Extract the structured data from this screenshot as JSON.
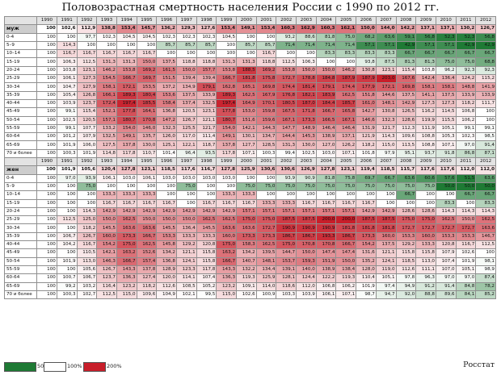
{
  "title": "Половозрастная смертность населения России с 1990 по 2012 гг.",
  "years": [
    "1990",
    "1991",
    "1992",
    "1993",
    "1994",
    "1995",
    "1996",
    "1997",
    "1998",
    "1999",
    "2000",
    "2001",
    "2002",
    "2003",
    "2004",
    "2005",
    "2006",
    "2007",
    "2008",
    "2009",
    "2010",
    "2011",
    "2012"
  ],
  "legend": {
    "low": "50%",
    "mid": "100%",
    "high": "200%"
  },
  "source": "Росстат",
  "colors": {
    "low": "#1e7a34",
    "mid": "#ffffff",
    "high": "#c81e2a",
    "header": "#e3e3e3",
    "sex_label": "#cdcdcd"
  },
  "chart_data": {
    "type": "heatmap",
    "title": "Половозрастная смертность населения России с 1990 по 2012 гг.",
    "x": [
      "1990",
      "1991",
      "1992",
      "1993",
      "1994",
      "1995",
      "1996",
      "1997",
      "1998",
      "1999",
      "2000",
      "2001",
      "2002",
      "2003",
      "2004",
      "2005",
      "2006",
      "2007",
      "2008",
      "2009",
      "2010",
      "2011",
      "2012"
    ],
    "color_scale": {
      "low": 50,
      "mid": 100,
      "high": 200
    },
    "groups": [
      {
        "name": "муж",
        "rows": [
          {
            "label": "муж",
            "total": true,
            "values": [
              100,
              102.6,
              112.9,
              138.8,
              153.4,
              145.7,
              136.2,
              129.3,
              127.6,
              153.4,
              149.1,
              153.4,
              160.3,
              162.9,
              160.3,
              162.1,
              150.0,
              144.0,
              142.2,
              137.1,
              137.1,
              130.2,
              126.7
            ]
          },
          {
            "label": "0-4",
            "values": [
              100,
              100.0,
              97.7,
              102.3,
              104.5,
              104.5,
              102.3,
              102.3,
              102.3,
              104.5,
              100.0,
              100.0,
              93.2,
              88.6,
              81.8,
              75.0,
              68.2,
              63.6,
              59.1,
              56.8,
              52.3,
              52.3,
              56.8
            ]
          },
          {
            "label": "5–9",
            "values": [
              100,
              114.3,
              100.0,
              100.0,
              100.0,
              100.0,
              85.7,
              85.7,
              85.7,
              100.0,
              85.7,
              85.7,
              71.4,
              71.4,
              71.4,
              71.4,
              57.1,
              57.1,
              42.9,
              57.1,
              57.1,
              42.9,
              42.9
            ]
          },
          {
            "label": "10–14",
            "values": [
              100,
              116.7,
              116.7,
              116.7,
              116.7,
              116.7,
              100.0,
              100.0,
              100.0,
              100.0,
              100.0,
              116.7,
              100.0,
              100.0,
              83.3,
              83.3,
              83.3,
              83.3,
              66.7,
              66.7,
              66.7,
              66.7,
              66.7
            ]
          },
          {
            "label": "15-19",
            "values": [
              100,
              106.3,
              112.5,
              131.3,
              131.3,
              150.0,
              137.5,
              118.8,
              118.8,
              131.3,
              131.3,
              118.8,
              112.5,
              106.3,
              100.0,
              100.0,
              93.8,
              87.5,
              81.3,
              81.3,
              75.0,
              75.0,
              68.8
            ]
          },
          {
            "label": "20-24",
            "values": [
              100,
              103.8,
              123.1,
              146.2,
              153.8,
              169.2,
              161.5,
              150.0,
              157.7,
              153.8,
              188.5,
              169.2,
              153.8,
              150.0,
              150.0,
              146.2,
              130.8,
              123.1,
              115.4,
              103.8,
              96.2,
              92.3,
              92.3
            ]
          },
          {
            "label": "25-29",
            "values": [
              100,
              106.1,
              127.3,
              154.5,
              166.7,
              169.7,
              151.5,
              139.4,
              139.4,
              166.7,
              181.8,
              175.8,
              172.7,
              178.8,
              184.8,
              187.9,
              187.9,
              203.0,
              167.6,
              142.4,
              136.4,
              124.2,
              115.2
            ]
          },
          {
            "label": "30-34",
            "values": [
              100,
              104.7,
              127.9,
              158.1,
              172.1,
              153.5,
              137.2,
              134.9,
              179.1,
              162.8,
              165.1,
              169.8,
              174.4,
              181.4,
              179.1,
              174.4,
              177.9,
              172.1,
              169.8,
              158.1,
              158.1,
              148.8,
              141.9
            ]
          },
          {
            "label": "35-39",
            "values": [
              100,
              105.4,
              126.8,
              166.1,
              189.3,
              180.4,
              153.6,
              137.5,
              133.9,
              189.3,
              162.5,
              167.9,
              176.8,
              182.1,
              183.9,
              162.5,
              151.8,
              144.6,
              137.5,
              141.1,
              137.5,
              133.9,
              133.9
            ]
          },
          {
            "label": "40-44",
            "values": [
              100,
              103.9,
              123.7,
              172.4,
              197.4,
              185.5,
              158.4,
              137.4,
              132.5,
              197.4,
              164.9,
              170.1,
              180.5,
              187.0,
              184.4,
              185.7,
              161.0,
              148.1,
              142.9,
              127.3,
              127.3,
              118.2,
              111.7
            ]
          },
          {
            "label": "45-49",
            "values": [
              100,
              99.1,
              115.4,
              152.1,
              177.8,
              164.1,
              136.8,
              120.5,
              123.1,
              177.8,
              153.0,
              159.8,
              167.5,
              171.8,
              166.7,
              165.8,
              142.7,
              130.8,
              126.5,
              116.2,
              114.5,
              106.8,
              100.0
            ]
          },
          {
            "label": "50-54",
            "values": [
              100,
              102.5,
              120.5,
              157.1,
              180.7,
              170.8,
              147.2,
              126.7,
              121.1,
              180.7,
              151.6,
              159.6,
              167.1,
              173.3,
              166.5,
              167.1,
              146.6,
              132.3,
              128.6,
              119.9,
              115.5,
              106.2,
              100.0
            ]
          },
          {
            "label": "55-59",
            "values": [
              100,
              99.1,
              107.7,
              133.2,
              154.0,
              146.0,
              132.3,
              125.5,
              121.7,
              154.0,
              142.1,
              144.3,
              147.7,
              148.9,
              146.4,
              146.4,
              131.9,
              121.7,
              112.3,
              111.9,
              105.1,
              99.1,
              99.1
            ]
          },
          {
            "label": "60-64",
            "values": [
              100,
              101.2,
              107.9,
              132.5,
              149.1,
              135.7,
              126.0,
              117.0,
              111.4,
              149.1,
              130.1,
              134.7,
              144.4,
              145.3,
              138.9,
              137.1,
              121.9,
              114.3,
              109.6,
              108.8,
              105.3,
              102.3,
              98.5
            ]
          },
          {
            "label": "65-69",
            "values": [
              100,
              101.9,
              106.0,
              127.5,
              137.8,
              130.0,
              125.1,
              122.1,
              118.7,
              137.8,
              127.7,
              128.5,
              131.3,
              130.0,
              127.0,
              126.2,
              118.2,
              115.0,
              113.5,
              108.8,
              107.1,
              97.0,
              91.4
            ]
          },
          {
            "label": "70 и более",
            "values": [
              100,
              100.3,
              101.9,
              114.8,
              117.8,
              110.7,
              101.4,
              96.4,
              93.5,
              117.8,
              107.1,
              100.3,
              99.4,
              102.5,
              103.0,
              107.1,
              101.8,
              97.9,
              95.1,
              93.7,
              91.8,
              86.8,
              87.1
            ]
          }
        ]
      },
      {
        "name": "жен",
        "rows": [
          {
            "label": "жен",
            "total": true,
            "values": [
              100,
              101.9,
              105.6,
              120.4,
              127.8,
              123.1,
              118.5,
              117.6,
              116.7,
              127.8,
              125.9,
              130.6,
              130.6,
              126.9,
              127.8,
              123.1,
              119.4,
              118.5,
              115.7,
              117.6,
              117.6,
              112.0,
              112.0
            ]
          },
          {
            "label": "0-4",
            "values": [
              100,
              97.0,
              93.9,
              106.1,
              103.0,
              106.1,
              103.0,
              103.0,
              103.0,
              103.0,
              100.0,
              100.0,
              93.9,
              90.9,
              81.8,
              75.8,
              69.7,
              66.7,
              63.6,
              60.6,
              57.6,
              51.5,
              63.6
            ]
          },
          {
            "label": "5–9",
            "values": [
              100,
              100.0,
              75.0,
              100.0,
              100.0,
              100.0,
              100.0,
              75.0,
              100.0,
              100.0,
              75.0,
              75.0,
              75.0,
              75.0,
              75.0,
              75.0,
              75.0,
              75.0,
              75.0,
              75.0,
              50.0,
              50.0,
              50.0
            ]
          },
          {
            "label": "10–14",
            "values": [
              100,
              100.0,
              100.0,
              133.3,
              133.3,
              133.3,
              100.0,
              100.0,
              100.0,
              133.3,
              133.3,
              100.0,
              100.0,
              100.0,
              100.0,
              100.0,
              100.0,
              100.0,
              66.7,
              100.0,
              100.0,
              66.7,
              66.7
            ]
          },
          {
            "label": "15-19",
            "values": [
              100,
              100.0,
              100.0,
              116.7,
              116.7,
              116.7,
              116.7,
              100.0,
              116.7,
              116.7,
              116.7,
              133.3,
              133.3,
              116.7,
              116.7,
              116.7,
              116.7,
              100.0,
              100.0,
              100.0,
              83.3,
              100.0,
              83.3
            ]
          },
          {
            "label": "20-24",
            "values": [
              100,
              100.0,
              114.3,
              142.9,
              142.9,
              142.9,
              142.9,
              142.9,
              142.9,
              142.9,
              157.1,
              157.1,
              157.1,
              157.1,
              157.1,
              157.1,
              142.9,
              142.9,
              128.6,
              128.6,
              114.3,
              114.3,
              114.3
            ]
          },
          {
            "label": "25-29",
            "values": [
              100,
              112.5,
              125.0,
              150.0,
              162.5,
              150.0,
              150.0,
              150.0,
              162.5,
              162.5,
              175.0,
              175.0,
              187.5,
              187.5,
              200.0,
              200.0,
              187.5,
              187.5,
              175.0,
              175.0,
              162.5,
              150.0,
              162.5
            ]
          },
          {
            "label": "30-34",
            "values": [
              100,
              100.0,
              118.2,
              145.5,
              163.6,
              163.6,
              145.5,
              136.4,
              145.5,
              163.6,
              163.6,
              172.7,
              190.9,
              190.9,
              190.9,
              181.8,
              181.8,
              181.8,
              172.7,
              172.7,
              172.7,
              172.7,
              163.6
            ]
          },
          {
            "label": "35-39",
            "values": [
              100,
              106.7,
              126.7,
              160.0,
              173.3,
              166.7,
              153.3,
              133.3,
              133.3,
              160.0,
              173.3,
              173.3,
              186.7,
              186.7,
              193.3,
              186.7,
              173.3,
              160.0,
              153.3,
              160.0,
              153.3,
              153.3,
              146.7
            ]
          },
          {
            "label": "40-44",
            "values": [
              100,
              104.2,
              116.7,
              154.2,
              175.0,
              162.5,
              145.8,
              129.2,
              120.8,
              175.0,
              158.3,
              162.5,
              175.0,
              170.8,
              170.8,
              166.7,
              154.2,
              137.5,
              129.2,
              133.3,
              120.8,
              116.7,
              112.5
            ]
          },
          {
            "label": "45-49",
            "values": [
              100,
              100.0,
              110.5,
              142.1,
              163.2,
              152.6,
              134.2,
              121.1,
              115.8,
              163.2,
              134.2,
              139.5,
              144.7,
              150.0,
              147.4,
              147.4,
              131.6,
              121.1,
              115.8,
              115.8,
              107.9,
              102.6,
              100.0
            ]
          },
          {
            "label": "50-54",
            "values": [
              100,
              101.9,
              113.0,
              146.3,
              166.7,
              157.4,
              136.8,
              124.1,
              115.8,
              166.7,
              140.7,
              148.1,
              153.7,
              159.3,
              151.9,
              150.0,
              135.2,
              124.1,
              118.5,
              113.0,
              107.4,
              101.9,
              98.1
            ]
          },
          {
            "label": "55-59",
            "values": [
              100,
              100.0,
              105.6,
              126.7,
              143.3,
              137.8,
              128.9,
              123.3,
              117.8,
              143.3,
              132.2,
              134.4,
              139.1,
              140.0,
              138.9,
              138.4,
              128.0,
              119.0,
              112.6,
              111.1,
              107.0,
              105.1,
              98.9
            ]
          },
          {
            "label": "60-64",
            "values": [
              100,
              100.7,
              106.7,
              123.7,
              136.3,
              127.4,
              120.0,
              114.1,
              107.4,
              136.3,
              119.3,
              125.9,
              128.1,
              124.4,
              122.2,
              119.3,
              110.4,
              105.1,
              97.8,
              96.3,
              97.0,
              97.0,
              87.4
            ]
          },
          {
            "label": "65-69",
            "values": [
              100,
              99.2,
              103.2,
              116.4,
              123.2,
              118.2,
              112.6,
              108.5,
              105.2,
              123.2,
              109.1,
              114.0,
              118.6,
              112.0,
              106.8,
              106.2,
              101.9,
              97.4,
              94.9,
              91.2,
              91.4,
              84.8,
              78.2
            ]
          },
          {
            "label": "70 и более",
            "values": [
              100,
              100.3,
              102.7,
              112.5,
              115.0,
              109.6,
              104.9,
              102.1,
              99.5,
              115.0,
              102.6,
              100.9,
              103.3,
              103.9,
              106.1,
              107.1,
              98.7,
              94.7,
              92.0,
              88.8,
              89.6,
              84.1,
              85.2
            ]
          }
        ]
      }
    ]
  }
}
